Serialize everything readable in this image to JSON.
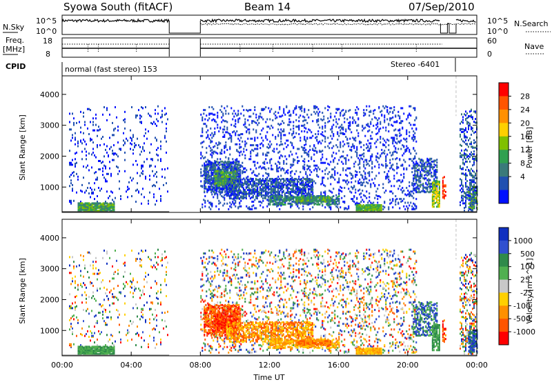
{
  "header": {
    "station": "Syowa South (fitACF)",
    "beam": "Beam 14",
    "date": "07/Sep/2010"
  },
  "noise_panel": {
    "left_label": "N.Sky",
    "right_label": "N.Search",
    "left_ticks": [
      "10^5",
      "10^0"
    ],
    "right_ticks": [
      "10^5",
      "10^0"
    ]
  },
  "freq_panel": {
    "left_label_1": "Freq.",
    "left_label_2": "[MHz]",
    "right_label": "Nave",
    "left_ticks": [
      "18",
      "8"
    ],
    "right_ticks": [
      "60",
      "0"
    ],
    "freq_range": [
      8,
      18
    ],
    "nave_range": [
      0,
      60
    ]
  },
  "cpid": {
    "label": "CPID",
    "mode_1": "normal (fast stereo) 153",
    "mode_2": "Stereo -6401"
  },
  "time_axis": {
    "ticks": [
      "00:00",
      "04:00",
      "08:00",
      "12:00",
      "16:00",
      "20:00",
      "00:00"
    ],
    "tick_hours": [
      0,
      4,
      8,
      12,
      16,
      20,
      24
    ],
    "xlabel": "Time UT"
  },
  "chart_data": [
    {
      "type": "heatmap",
      "ylabel": "Slant Range [km]",
      "xlim": [
        0,
        24
      ],
      "ylim": [
        180,
        4600
      ],
      "ytick_labels": [
        "1000",
        "2000",
        "3000",
        "4000"
      ],
      "colorbar_label": "Power [dB]",
      "colorbar_ticks": [
        "28",
        "24",
        "20",
        "16",
        "12",
        "8",
        "4"
      ],
      "colorbar_colors": [
        "#ff0000",
        "#ff5500",
        "#ff9000",
        "#ffd000",
        "#80c000",
        "#30a050",
        "#3a7a7a",
        "#2050b0",
        "#0010ff"
      ],
      "no_data_hours": [
        [
          6.2,
          8.0
        ]
      ]
    },
    {
      "type": "heatmap",
      "ylabel": "Slant Range [km]",
      "xlim": [
        0,
        24
      ],
      "ylim": [
        180,
        4600
      ],
      "ytick_labels": [
        "1000",
        "2000",
        "3000",
        "4000"
      ],
      "colorbar_label": "Velocity [m s^-1]",
      "colorbar_ticks": [
        "1000",
        "500",
        "100",
        "25",
        "-25",
        "-100",
        "-500",
        "-1000"
      ],
      "colorbar_colors": [
        "#1030c0",
        "#3050d0",
        "#2f8a4a",
        "#50b050",
        "#c8c8c8",
        "#ffd000",
        "#ff9000",
        "#ff5500",
        "#ff0000"
      ],
      "no_data_hours": [
        [
          6.2,
          8.0
        ]
      ]
    }
  ]
}
